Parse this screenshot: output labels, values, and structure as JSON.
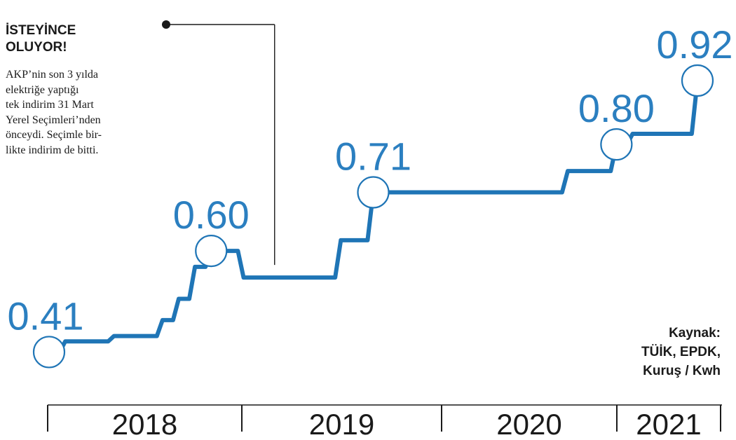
{
  "headline": {
    "line1": "İSTEYİNCE",
    "line2": "OLUYOR!"
  },
  "note": {
    "lines": [
      "AKP’nin son 3 yılda",
      "elektriğe yaptığı",
      "tek indirim 31 Mart",
      "Yerel Seçimleri’nden",
      "önceydi. Seçimle bir-",
      "likte indirim de bitti."
    ]
  },
  "source": {
    "line1": "Kaynak:",
    "line2": "TÜİK, EPDK,",
    "line3": "Kuruş / Kwh"
  },
  "colors": {
    "line": "#1f75b6",
    "label": "#2b7fc0",
    "text": "#1a1a1a",
    "axis": "#1a1a1a",
    "marker_fill": "#ffffff"
  },
  "chart_data": {
    "type": "line",
    "line_style": "step",
    "unit": "Kuruş / Kwh",
    "x_axis_ticks": [
      "2018",
      "2019",
      "2020",
      "2021"
    ],
    "series": [
      {
        "x": [
          "2018-01",
          "2018-02",
          "2018-03",
          "2018-04",
          "2018-05",
          "2018-06",
          "2018-07",
          "2018-08",
          "2018-09",
          "2018-10",
          "2018-11",
          "2018-12",
          "2019-01",
          "2019-02",
          "2019-03",
          "2019-04",
          "2019-05",
          "2019-06",
          "2019-07",
          "2019-08",
          "2019-09",
          "2019-10",
          "2019-11",
          "2019-12",
          "2020-01",
          "2020-02",
          "2020-03",
          "2020-04",
          "2020-05",
          "2020-06",
          "2020-07",
          "2020-08",
          "2020-09",
          "2020-10",
          "2020-11",
          "2020-12",
          "2021-01",
          "2021-02",
          "2021-03",
          "2021-04",
          "2021-05"
        ],
        "y": [
          0.41,
          0.43,
          0.43,
          0.43,
          0.44,
          0.44,
          0.44,
          0.47,
          0.51,
          0.57,
          0.6,
          0.6,
          0.55,
          0.55,
          0.55,
          0.55,
          0.55,
          0.55,
          0.62,
          0.62,
          0.71,
          0.71,
          0.71,
          0.71,
          0.71,
          0.71,
          0.71,
          0.71,
          0.71,
          0.71,
          0.71,
          0.71,
          0.75,
          0.75,
          0.75,
          0.8,
          0.82,
          0.82,
          0.82,
          0.82,
          0.92
        ]
      }
    ],
    "highlighted_points": [
      {
        "x": "2018-01",
        "y": 0.41,
        "label": "0.41"
      },
      {
        "x": "2018-11",
        "y": 0.6,
        "label": "0.60"
      },
      {
        "x": "2019-09",
        "y": 0.71,
        "label": "0.71"
      },
      {
        "x": "2020-12",
        "y": 0.8,
        "label": "0.80"
      },
      {
        "x": "2021-05",
        "y": 0.92,
        "label": "0.92"
      }
    ],
    "annotation_point": {
      "x": "2019-03",
      "y": 0.55
    },
    "ylim": [
      0.35,
      1.0
    ],
    "grid": false,
    "legend": "none"
  }
}
